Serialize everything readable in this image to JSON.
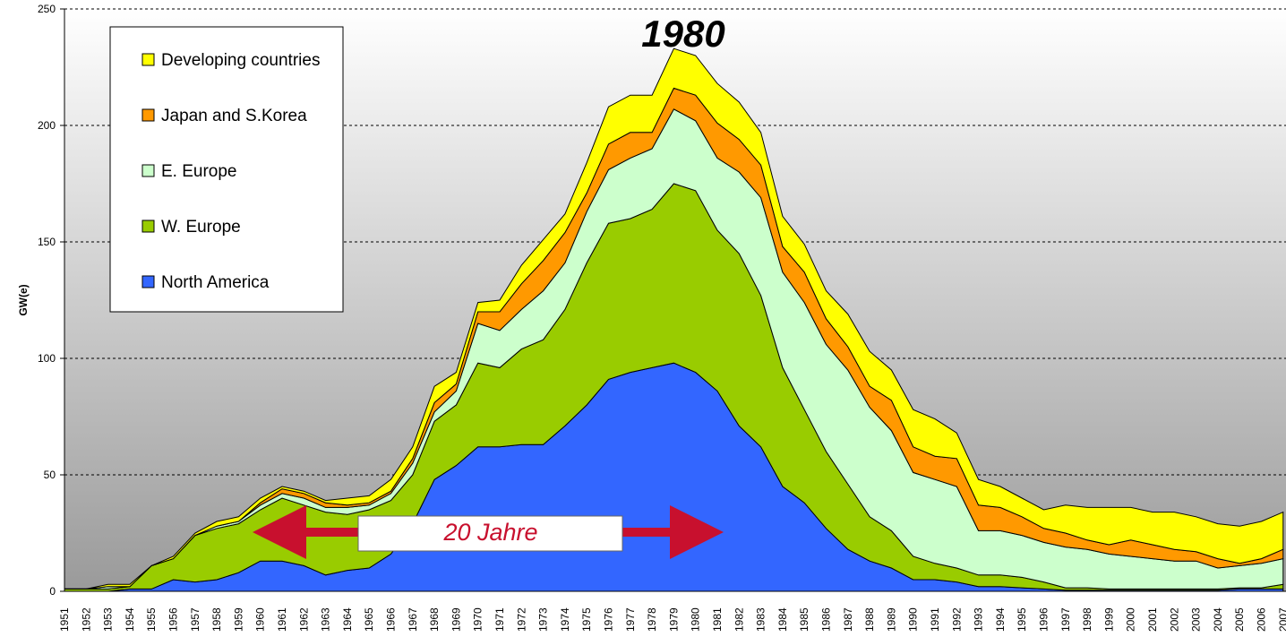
{
  "chart_data": {
    "type": "stacked_area",
    "y_label": "GW(e)",
    "annotations": [
      "1980",
      "20 Jahre"
    ],
    "categories": [
      "1951",
      "1952",
      "1953",
      "1954",
      "1955",
      "1956",
      "1957",
      "1958",
      "1959",
      "1960",
      "1961",
      "1962",
      "1963",
      "1964",
      "1965",
      "1966",
      "1967",
      "1968",
      "1969",
      "1970",
      "1971",
      "1972",
      "1973",
      "1974",
      "1975",
      "1976",
      "1977",
      "1978",
      "1979",
      "1980",
      "1981",
      "1982",
      "1983",
      "1984",
      "1985",
      "1986",
      "1987",
      "1988",
      "1989",
      "1990",
      "1991",
      "1992",
      "1993",
      "1994",
      "1995",
      "1996",
      "1997",
      "1998",
      "1999",
      "2000",
      "2001",
      "2002",
      "2003",
      "2004",
      "2005",
      "2006",
      "2007"
    ],
    "series": [
      {
        "name": "North America",
        "color": "#3366ff",
        "values": [
          0,
          0,
          0,
          1,
          1,
          5,
          4,
          5,
          8,
          13,
          13,
          11,
          7,
          9,
          10,
          16,
          29,
          48,
          54,
          62,
          62,
          63,
          63,
          71,
          80,
          91,
          94,
          96,
          98,
          94,
          86,
          71,
          62,
          45,
          38,
          27,
          18,
          13,
          10,
          5,
          5,
          4,
          2,
          2,
          1.5,
          1,
          0.5,
          0.5,
          0.5,
          0.5,
          0.5,
          0.5,
          0.5,
          0.5,
          1,
          1,
          1
        ]
      },
      {
        "name": "W. Europe",
        "color": "#99cc00",
        "values": [
          1,
          1,
          1,
          1,
          10,
          9,
          20,
          22,
          21,
          22,
          27,
          26,
          27,
          24,
          25,
          23,
          21,
          25,
          26,
          36,
          34,
          41,
          45,
          50,
          61,
          67,
          66,
          68,
          77,
          78,
          69,
          74,
          65,
          51,
          40,
          33,
          28,
          19,
          16,
          10,
          7,
          6,
          5,
          5,
          4.5,
          3,
          1,
          1,
          0.5,
          0.5,
          0.5,
          0.5,
          0.5,
          0.5,
          0.5,
          0.5,
          2
        ]
      },
      {
        "name": "E. Europe",
        "color": "#ccffcc",
        "values": [
          0,
          0,
          1,
          0,
          0,
          0,
          0,
          1,
          1,
          2,
          2,
          3,
          2,
          3,
          2,
          3,
          5,
          4,
          6,
          17,
          16,
          17,
          21,
          20,
          22,
          23,
          26,
          26,
          32,
          30,
          31,
          35,
          42,
          41,
          46,
          46,
          49,
          47,
          43,
          36,
          36,
          35,
          19,
          19,
          18,
          17,
          17.5,
          16.5,
          15,
          14,
          13,
          12,
          12,
          9,
          9.5,
          10.5,
          11
        ]
      },
      {
        "name": "Japan and S.Korea",
        "color": "#ff9900",
        "values": [
          0,
          0,
          0,
          0,
          0,
          0,
          0,
          0,
          0,
          1,
          2,
          2,
          2,
          1,
          1,
          1,
          2,
          4,
          3,
          5,
          8,
          11,
          13,
          13,
          8,
          11,
          11,
          7,
          9,
          11,
          15,
          14,
          14,
          11,
          13,
          11,
          10,
          9,
          13,
          11,
          10,
          12,
          11,
          10,
          8,
          6,
          6,
          4,
          4,
          7,
          6,
          5,
          4,
          4,
          1,
          2,
          4
        ]
      },
      {
        "name": "Developing countries",
        "color": "#ffff00",
        "values": [
          0,
          0,
          1,
          1,
          0,
          1,
          1,
          2,
          2,
          2,
          1,
          1,
          1,
          3,
          3,
          5,
          5,
          7,
          5,
          4,
          5,
          8,
          9,
          8,
          13,
          16,
          16,
          16,
          17,
          17,
          17,
          16,
          14,
          13,
          12,
          12,
          14,
          15,
          13,
          16,
          16,
          11,
          11,
          9,
          8,
          8,
          12,
          14,
          16,
          14,
          14,
          16,
          15,
          15,
          16,
          16,
          16
        ]
      }
    ],
    "ylim": [
      0,
      250
    ],
    "yticks": [
      0,
      50,
      100,
      150,
      200,
      250
    ],
    "grid": true
  }
}
